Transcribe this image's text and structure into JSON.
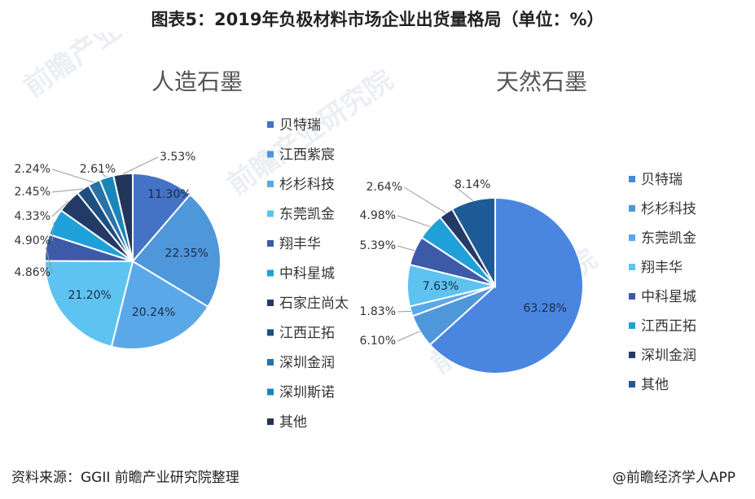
{
  "header": {
    "title": "图表5：2019年负极材料市场企业出货量格局（单位：%）"
  },
  "watermark": {
    "text": "前瞻产业研究院"
  },
  "footer": {
    "source": "资料来源：GGII 前瞻产业研究院整理",
    "brand": "@前瞻经济学人APP"
  },
  "chart_data": [
    {
      "type": "pie",
      "title": "人造石墨",
      "legend_position": "right",
      "series": [
        {
          "name": "贝特瑞",
          "value": 11.3,
          "color": "#4472c4"
        },
        {
          "name": "江西紫宸",
          "value": 22.35,
          "color": "#4f97db"
        },
        {
          "name": "杉杉科技",
          "value": 20.24,
          "color": "#5ba8e8"
        },
        {
          "name": "东莞凯金",
          "value": 21.2,
          "color": "#5ec3f0"
        },
        {
          "name": "翔丰华",
          "value": 4.86,
          "color": "#3d5aa8"
        },
        {
          "name": "中科星城",
          "value": 4.9,
          "color": "#20a0d8"
        },
        {
          "name": "石家庄尚太",
          "value": 4.33,
          "color": "#233a66"
        },
        {
          "name": "江西正拓",
          "value": 2.45,
          "color": "#1e4f80"
        },
        {
          "name": "深圳金润",
          "value": 2.24,
          "color": "#2872a8"
        },
        {
          "name": "深圳斯诺",
          "value": 2.61,
          "color": "#1a86b8"
        },
        {
          "name": "其他",
          "value": 3.53,
          "color": "#223457"
        }
      ],
      "labels": [
        "11.30%",
        "22.35%",
        "20.24%",
        "21.20%",
        "4.86%",
        "4.90%",
        "4.33%",
        "2.45%",
        "2.24%",
        "2.61%",
        "3.53%"
      ]
    },
    {
      "type": "pie",
      "title": "天然石墨",
      "legend_position": "right",
      "series": [
        {
          "name": "贝特瑞",
          "value": 63.28,
          "color": "#4a86e0"
        },
        {
          "name": "杉杉科技",
          "value": 6.1,
          "color": "#4f97db"
        },
        {
          "name": "东莞凯金",
          "value": 1.83,
          "color": "#5ba8e8"
        },
        {
          "name": "翔丰华",
          "value": 7.63,
          "color": "#5ec3f0"
        },
        {
          "name": "中科星城",
          "value": 5.39,
          "color": "#3d5aa8"
        },
        {
          "name": "江西正拓",
          "value": 4.98,
          "color": "#20a0d8"
        },
        {
          "name": "深圳金润",
          "value": 2.64,
          "color": "#233a66"
        },
        {
          "name": "其他",
          "value": 8.14,
          "color": "#1e5a96"
        }
      ],
      "labels": [
        "63.28%",
        "6.10%",
        "1.83%",
        "7.63%",
        "5.39%",
        "4.98%",
        "2.64%",
        "8.14%"
      ]
    }
  ]
}
